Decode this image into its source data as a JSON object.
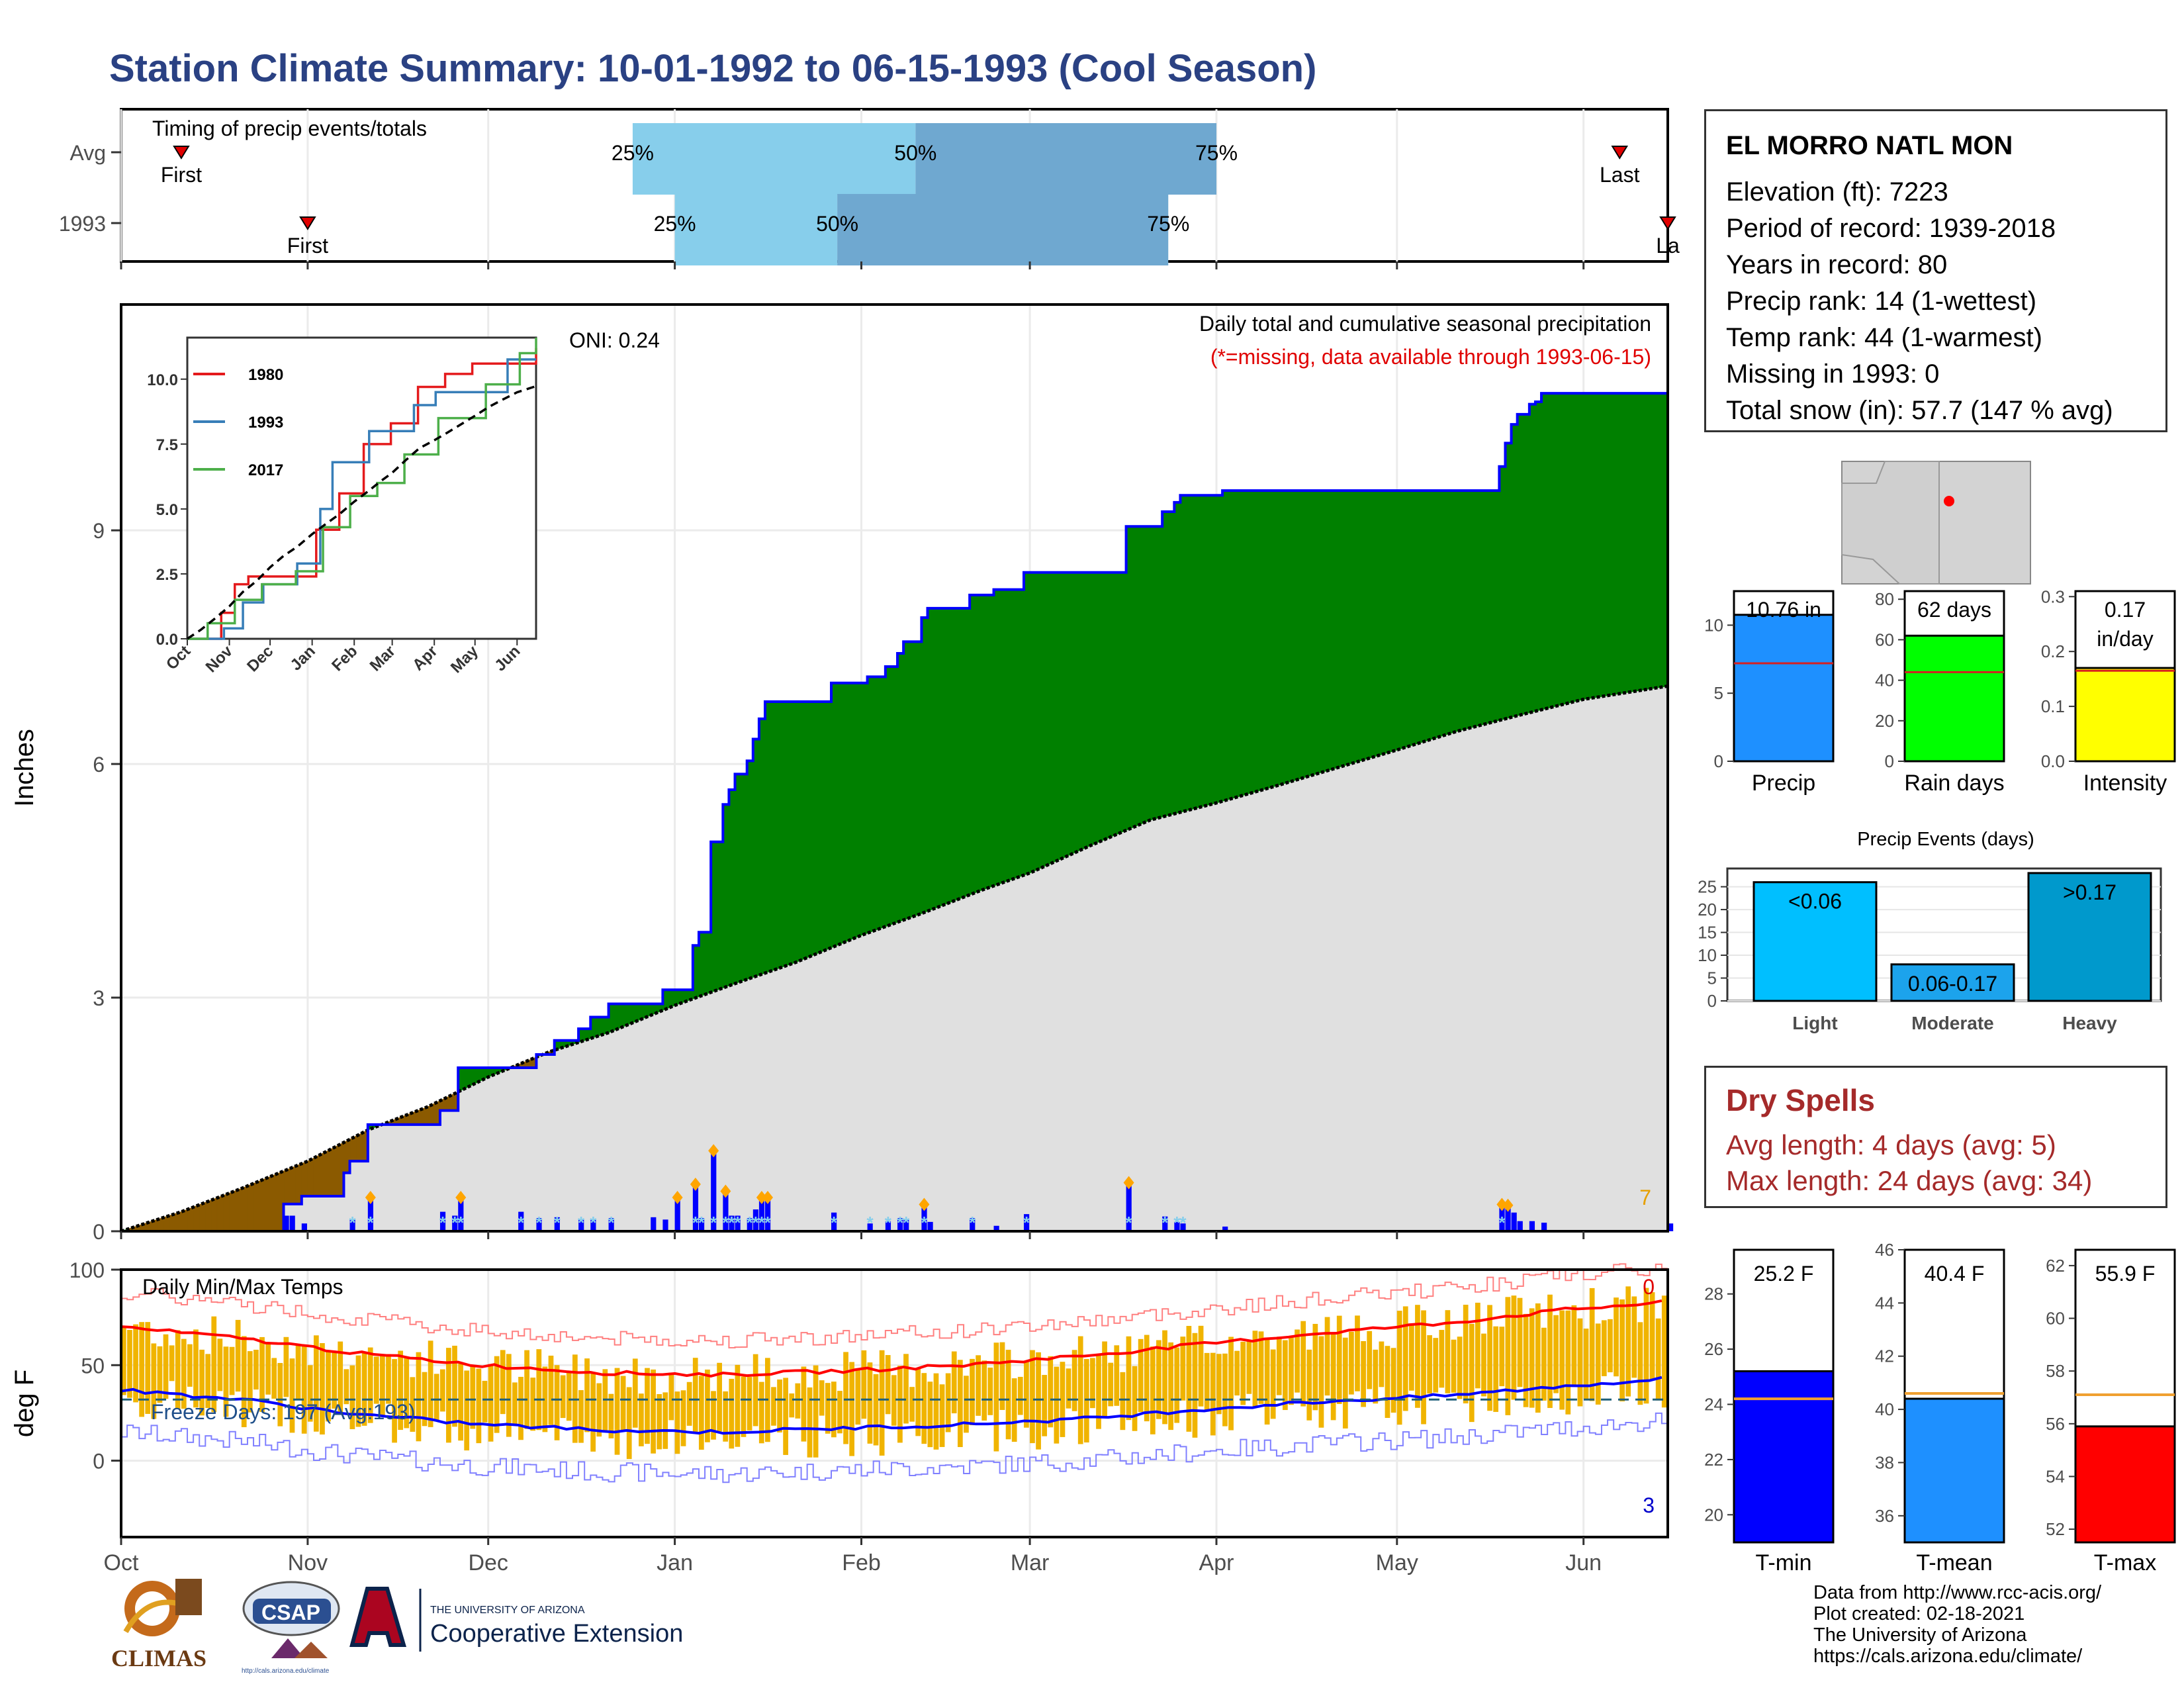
{
  "title": "Station Climate Summary: 10-01-1992 to 06-15-1993 (Cool Season)",
  "timing": {
    "title": "Timing of precip events/totals",
    "rows": [
      {
        "label": "Avg",
        "first_day": 10,
        "last_day": 249,
        "p25_day": 85,
        "p50_day": 132,
        "p75_day": 182,
        "first_text": "First",
        "last_text": "Last",
        "p25_text": "25%",
        "p50_text": "50%",
        "p75_text": "75%"
      },
      {
        "label": "1993",
        "first_day": 31,
        "last_day": 257,
        "p25_day": 92,
        "p50_day": 119,
        "p75_day": 174,
        "first_text": "First",
        "last_text": "La",
        "p25_text": "25%",
        "p50_text": "50%",
        "p75_text": "75%"
      }
    ]
  },
  "precip": {
    "ylabel": "Inches",
    "yticks": [
      0,
      3,
      6,
      9
    ],
    "ymax": 10.76,
    "legend_line1": "Daily total and cumulative seasonal precipitation",
    "legend_line2": "(*=missing, data available through 1993-06-15)",
    "oni": "ONI: 0.24",
    "corner_label": "7",
    "colors": {
      "above": "#008000",
      "below": "#8b5a00",
      "normal": "#e0e0e0",
      "line": "#0000ff",
      "daily": "#0000ff",
      "snow": "#87ceeb",
      "marker": "#ffa500"
    }
  },
  "inset": {
    "yticks": [
      "0.0",
      "2.5",
      "5.0",
      "7.5",
      "10.0"
    ],
    "months": [
      "Oct",
      "Nov",
      "Dec",
      "Jan",
      "Feb",
      "Mar",
      "Apr",
      "May",
      "Jun"
    ],
    "series": [
      {
        "name": "1980",
        "color": "#e41a1c"
      },
      {
        "name": "1993",
        "color": "#377eb8"
      },
      {
        "name": "2017",
        "color": "#4daf4a"
      }
    ]
  },
  "temp": {
    "ylabel": "deg F",
    "title": "Daily Min/Max Temps",
    "yticks": [
      0,
      50,
      100
    ],
    "freeze_text": "Freeze Days: 197 (Avg:193)",
    "top_count": "0",
    "bottom_count": "3"
  },
  "months": [
    "Oct",
    "Nov",
    "Dec",
    "Jan",
    "Feb",
    "Mar",
    "Apr",
    "May",
    "Jun"
  ],
  "station": {
    "name": "EL MORRO NATL MON",
    "lines": [
      "Elevation (ft): 7223",
      "Period of record: 1939-2018",
      "Years in record: 80",
      "Precip rank: 14 (1-wettest)",
      "Temp rank: 44 (1-warmest)",
      "Missing in 1993: 0",
      "Total snow (in): 57.7 (147 % avg)"
    ]
  },
  "bars_small": [
    {
      "label": "Precip",
      "value": 10.76,
      "avg": 7.2,
      "ymax": 12.5,
      "ticks": [
        "0",
        "5",
        "10"
      ],
      "tickvals": [
        0,
        5,
        10
      ],
      "text": [
        "10.76 in"
      ],
      "color": "#1e90ff"
    },
    {
      "label": "Rain days",
      "value": 62,
      "avg": 44,
      "ymax": 84,
      "ticks": [
        "0",
        "20",
        "40",
        "60",
        "80"
      ],
      "tickvals": [
        0,
        20,
        40,
        60,
        80
      ],
      "text": [
        "62 days"
      ],
      "color": "#00ff00"
    },
    {
      "label": "Intensity",
      "value": 0.17,
      "avg": 0.165,
      "ymax": 0.31,
      "ticks": [
        "0.0",
        "0.1",
        "0.2",
        "0.3"
      ],
      "tickvals": [
        0,
        0.1,
        0.2,
        0.3
      ],
      "text": [
        "0.17",
        "in/day"
      ],
      "color": "#ffff00"
    }
  ],
  "events": {
    "title": "Precip Events (days)",
    "ticks": [
      "0",
      "5",
      "10",
      "15",
      "20",
      "25"
    ],
    "tickvals": [
      0,
      5,
      10,
      15,
      20,
      25
    ],
    "ymax": 29,
    "bars": [
      {
        "label": "Light",
        "value": 26,
        "text": "<0.06",
        "color": "#00bfff"
      },
      {
        "label": "Moderate",
        "value": 8,
        "text": "0.06-0.17",
        "color": "#1ca3ec"
      },
      {
        "label": "Heavy",
        "value": 28,
        "text": ">0.17",
        "color": "#0099cc"
      }
    ]
  },
  "dry_spells": {
    "title": "Dry Spells",
    "avg_line": "Avg length: 4 days (avg: 5)",
    "max_line": "Max length: 24 days (avg: 34)"
  },
  "temps_small": [
    {
      "label": "T-min",
      "value": 25.2,
      "avg": 24.2,
      "ymin": 19,
      "ymax": 29.6,
      "ticks": [
        "20",
        "22",
        "24",
        "26",
        "28"
      ],
      "tickvals": [
        20,
        22,
        24,
        26,
        28
      ],
      "text": "25.2 F",
      "color": "#0000ff"
    },
    {
      "label": "T-mean",
      "value": 40.4,
      "avg": 40.6,
      "ymin": 35,
      "ymax": 46,
      "ticks": [
        "36",
        "38",
        "40",
        "42",
        "44",
        "46"
      ],
      "tickvals": [
        36,
        38,
        40,
        42,
        44,
        46
      ],
      "text": "40.4 F",
      "color": "#1e90ff"
    },
    {
      "label": "T-max",
      "value": 55.9,
      "avg": 57.1,
      "ymin": 51.5,
      "ymax": 62.6,
      "ticks": [
        "52",
        "54",
        "56",
        "58",
        "60",
        "62"
      ],
      "tickvals": [
        52,
        54,
        56,
        58,
        60,
        62
      ],
      "text": "55.9 F",
      "color": "#ff0000"
    }
  ],
  "credits": [
    "Data from http://www.rcc-acis.org/",
    "Plot created: 02-18-2021",
    "The University of Arizona",
    "https://cals.arizona.edu/climate/"
  ],
  "logos": {
    "climas": "CLIMAS",
    "csap": "CSAP",
    "csap_url": "http://cals.arizona.edu/climate",
    "ua_small": "THE UNIVERSITY OF ARIZONA",
    "ua_big": "Cooperative Extension"
  },
  "chart_data": {
    "type": "area",
    "title": "Station Climate Summary: 10-01-1992 to 06-15-1993 (Cool Season)",
    "ylabel": "Inches",
    "ylim": [
      0,
      11.9
    ],
    "x_domain": [
      "1992-10-01",
      "1993-06-15"
    ],
    "cumulative_observed": [
      {
        "day": 0,
        "value": 0.0
      },
      {
        "day": 26,
        "value": 0.0
      },
      {
        "day": 27,
        "value": 0.35
      },
      {
        "day": 30,
        "value": 0.45
      },
      {
        "day": 37,
        "value": 0.75
      },
      {
        "day": 38,
        "value": 0.9
      },
      {
        "day": 41,
        "value": 1.37
      },
      {
        "day": 52,
        "value": 1.37
      },
      {
        "day": 53,
        "value": 1.55
      },
      {
        "day": 56,
        "value": 2.1
      },
      {
        "day": 66,
        "value": 2.1
      },
      {
        "day": 69,
        "value": 2.27
      },
      {
        "day": 72,
        "value": 2.45
      },
      {
        "day": 76,
        "value": 2.6
      },
      {
        "day": 78,
        "value": 2.75
      },
      {
        "day": 81,
        "value": 2.92
      },
      {
        "day": 90,
        "value": 3.1
      },
      {
        "day": 95,
        "value": 3.67
      },
      {
        "day": 96,
        "value": 3.84
      },
      {
        "day": 98,
        "value": 5.0
      },
      {
        "day": 100,
        "value": 5.48
      },
      {
        "day": 101,
        "value": 5.67
      },
      {
        "day": 102,
        "value": 5.87
      },
      {
        "day": 104,
        "value": 6.04
      },
      {
        "day": 105,
        "value": 6.32
      },
      {
        "day": 106,
        "value": 6.58
      },
      {
        "day": 107,
        "value": 6.8
      },
      {
        "day": 118,
        "value": 7.04
      },
      {
        "day": 124,
        "value": 7.12
      },
      {
        "day": 127,
        "value": 7.25
      },
      {
        "day": 129,
        "value": 7.42
      },
      {
        "day": 130,
        "value": 7.57
      },
      {
        "day": 133,
        "value": 7.88
      },
      {
        "day": 134,
        "value": 8.0
      },
      {
        "day": 141,
        "value": 8.17
      },
      {
        "day": 145,
        "value": 8.24
      },
      {
        "day": 150,
        "value": 8.46
      },
      {
        "day": 166,
        "value": 8.46
      },
      {
        "day": 167,
        "value": 9.05
      },
      {
        "day": 173,
        "value": 9.24
      },
      {
        "day": 175,
        "value": 9.36
      },
      {
        "day": 176,
        "value": 9.45
      },
      {
        "day": 183,
        "value": 9.51
      },
      {
        "day": 228,
        "value": 9.51
      },
      {
        "day": 229,
        "value": 9.82
      },
      {
        "day": 230,
        "value": 10.12
      },
      {
        "day": 231,
        "value": 10.36
      },
      {
        "day": 232,
        "value": 10.49
      },
      {
        "day": 234,
        "value": 10.62
      },
      {
        "day": 235,
        "value": 10.65
      },
      {
        "day": 236,
        "value": 10.76
      },
      {
        "day": 257,
        "value": 10.76
      }
    ],
    "cumulative_normal": [
      {
        "day": 0,
        "value": 0.0
      },
      {
        "day": 10,
        "value": 0.25
      },
      {
        "day": 20,
        "value": 0.55
      },
      {
        "day": 31,
        "value": 0.9
      },
      {
        "day": 41,
        "value": 1.3
      },
      {
        "day": 51,
        "value": 1.6
      },
      {
        "day": 61,
        "value": 1.98
      },
      {
        "day": 71,
        "value": 2.3
      },
      {
        "day": 81,
        "value": 2.55
      },
      {
        "day": 92,
        "value": 2.9
      },
      {
        "day": 102,
        "value": 3.18
      },
      {
        "day": 112,
        "value": 3.45
      },
      {
        "day": 123,
        "value": 3.8
      },
      {
        "day": 133,
        "value": 4.08
      },
      {
        "day": 143,
        "value": 4.38
      },
      {
        "day": 151,
        "value": 4.6
      },
      {
        "day": 161,
        "value": 4.95
      },
      {
        "day": 171,
        "value": 5.28
      },
      {
        "day": 182,
        "value": 5.5
      },
      {
        "day": 192,
        "value": 5.72
      },
      {
        "day": 202,
        "value": 5.95
      },
      {
        "day": 212,
        "value": 6.18
      },
      {
        "day": 222,
        "value": 6.42
      },
      {
        "day": 232,
        "value": 6.62
      },
      {
        "day": 243,
        "value": 6.83
      },
      {
        "day": 257,
        "value": 7.0
      }
    ],
    "daily_precip": [
      {
        "day": 27,
        "value": 0.2
      },
      {
        "day": 28,
        "value": 0.2
      },
      {
        "day": 30,
        "value": 0.1
      },
      {
        "day": 38,
        "value": 0.15
      },
      {
        "day": 41,
        "value": 0.4
      },
      {
        "day": 53,
        "value": 0.25
      },
      {
        "day": 55,
        "value": 0.2
      },
      {
        "day": 56,
        "value": 0.4
      },
      {
        "day": 66,
        "value": 0.25
      },
      {
        "day": 69,
        "value": 0.17
      },
      {
        "day": 72,
        "value": 0.18
      },
      {
        "day": 76,
        "value": 0.15
      },
      {
        "day": 78,
        "value": 0.15
      },
      {
        "day": 81,
        "value": 0.17
      },
      {
        "day": 88,
        "value": 0.18
      },
      {
        "day": 90,
        "value": 0.15
      },
      {
        "day": 92,
        "value": 0.4
      },
      {
        "day": 95,
        "value": 0.57
      },
      {
        "day": 96,
        "value": 0.17
      },
      {
        "day": 98,
        "value": 1.0
      },
      {
        "day": 100,
        "value": 0.48
      },
      {
        "day": 101,
        "value": 0.2
      },
      {
        "day": 102,
        "value": 0.2
      },
      {
        "day": 104,
        "value": 0.17
      },
      {
        "day": 105,
        "value": 0.28
      },
      {
        "day": 106,
        "value": 0.4
      },
      {
        "day": 107,
        "value": 0.4
      },
      {
        "day": 118,
        "value": 0.24
      },
      {
        "day": 124,
        "value": 0.1
      },
      {
        "day": 127,
        "value": 0.13
      },
      {
        "day": 129,
        "value": 0.17
      },
      {
        "day": 130,
        "value": 0.15
      },
      {
        "day": 133,
        "value": 0.31
      },
      {
        "day": 134,
        "value": 0.12
      },
      {
        "day": 141,
        "value": 0.17
      },
      {
        "day": 145,
        "value": 0.07
      },
      {
        "day": 150,
        "value": 0.22
      },
      {
        "day": 167,
        "value": 0.59
      },
      {
        "day": 173,
        "value": 0.19
      },
      {
        "day": 175,
        "value": 0.12
      },
      {
        "day": 176,
        "value": 0.1
      },
      {
        "day": 183,
        "value": 0.06
      },
      {
        "day": 229,
        "value": 0.31
      },
      {
        "day": 230,
        "value": 0.3
      },
      {
        "day": 231,
        "value": 0.24
      },
      {
        "day": 232,
        "value": 0.13
      },
      {
        "day": 234,
        "value": 0.13
      },
      {
        "day": 236,
        "value": 0.11
      },
      {
        "day": 257,
        "value": 0.1
      }
    ],
    "tmax_normal": [
      {
        "day": 0,
        "value": 70
      },
      {
        "day": 20,
        "value": 64
      },
      {
        "day": 40,
        "value": 56
      },
      {
        "day": 60,
        "value": 50
      },
      {
        "day": 80,
        "value": 46
      },
      {
        "day": 100,
        "value": 45
      },
      {
        "day": 120,
        "value": 47
      },
      {
        "day": 140,
        "value": 50
      },
      {
        "day": 160,
        "value": 55
      },
      {
        "day": 180,
        "value": 61
      },
      {
        "day": 200,
        "value": 67
      },
      {
        "day": 220,
        "value": 72
      },
      {
        "day": 240,
        "value": 79
      },
      {
        "day": 257,
        "value": 83
      }
    ],
    "tmin_normal": [
      {
        "day": 0,
        "value": 37
      },
      {
        "day": 20,
        "value": 32
      },
      {
        "day": 40,
        "value": 24
      },
      {
        "day": 60,
        "value": 19
      },
      {
        "day": 80,
        "value": 16
      },
      {
        "day": 100,
        "value": 15
      },
      {
        "day": 120,
        "value": 17
      },
      {
        "day": 140,
        "value": 19
      },
      {
        "day": 160,
        "value": 22
      },
      {
        "day": 180,
        "value": 27
      },
      {
        "day": 200,
        "value": 31
      },
      {
        "day": 220,
        "value": 34
      },
      {
        "day": 240,
        "value": 39
      },
      {
        "day": 257,
        "value": 43
      }
    ],
    "temp_ylim": [
      -40,
      100
    ]
  }
}
